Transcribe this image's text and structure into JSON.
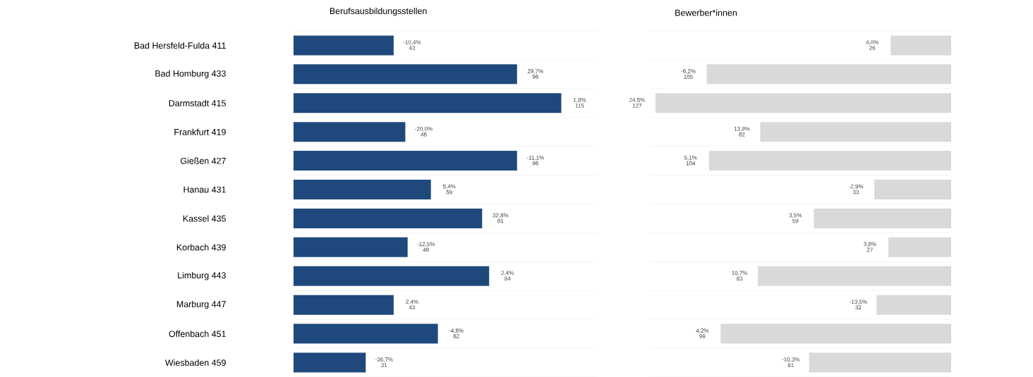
{
  "chart_data": [
    {
      "type": "bar",
      "orientation": "horizontal",
      "title": "Berufsausbildungsstellen",
      "tick_labels": "y",
      "grid": "y",
      "data_labels": true,
      "color": "#1f497d",
      "xlim": [
        0,
        130
      ],
      "categories": [
        "Bad Hersfeld-Fulda 411",
        "Bad Homburg 433",
        "Darmstadt 415",
        "Frankfurt 419",
        "Gießen 427",
        "Hanau 431",
        "Kassel 435",
        "Korbach 439",
        "Limburg 443",
        "Marburg 447",
        "Offenbach 451",
        "Wiesbaden 459"
      ],
      "values": [
        43,
        96,
        115,
        48,
        96,
        59,
        81,
        49,
        84,
        43,
        62,
        31
      ],
      "annotations": [
        {
          "text": "-10,4%",
          "x": 43,
          "y": "Bad Hersfeld-Fulda 411"
        },
        {
          "text": "29,7%",
          "x": 96,
          "y": "Bad Homburg 433"
        },
        {
          "text": "1,8%",
          "x": 115,
          "y": "Darmstadt 415"
        },
        {
          "text": "-20,0%",
          "x": 48,
          "y": "Frankfurt 419"
        },
        {
          "text": "-11,1%",
          "x": 96,
          "y": "Gießen 427"
        },
        {
          "text": "5,4%",
          "x": 59,
          "y": "Hanau 431"
        },
        {
          "text": "32,8%",
          "x": 81,
          "y": "Kassel 435"
        },
        {
          "text": "-12,5%",
          "x": 49,
          "y": "Korbach 439"
        },
        {
          "text": "2,4%",
          "x": 84,
          "y": "Limburg 443"
        },
        {
          "text": "2,4%",
          "x": 43,
          "y": "Marburg 447"
        },
        {
          "text": "-4,6%",
          "x": 62,
          "y": "Offenbach 451"
        },
        {
          "text": "-36,7%",
          "x": 31,
          "y": "Wiesbaden 459"
        }
      ]
    },
    {
      "type": "bar",
      "orientation": "horizontal",
      "title": "Bewerber*innen",
      "tick_labels": false,
      "grid": "y",
      "data_labels": true,
      "color": "#d9d9d9",
      "xlim": [
        130,
        0
      ],
      "categories": [
        null,
        null,
        null,
        null,
        null,
        null,
        null,
        null,
        null,
        null,
        null,
        null
      ],
      "values": [
        26,
        105,
        127,
        82,
        104,
        33,
        59,
        27,
        83,
        32,
        99,
        61
      ],
      "annotations": [
        {
          "text": "4,0%",
          "x": 26
        },
        {
          "text": "-6,2%",
          "x": 105
        },
        {
          "text": "24,5%",
          "x": 127
        },
        {
          "text": "13,9%",
          "x": 82
        },
        {
          "text": "5,1%",
          "x": 104
        },
        {
          "text": "-2,9%",
          "x": 33
        },
        {
          "text": "3,5%",
          "x": 59
        },
        {
          "text": "3,8%",
          "x": 27
        },
        {
          "text": "10,7%",
          "x": 83
        },
        {
          "text": "-13,5%",
          "x": 32
        },
        {
          "text": "4,2%",
          "x": 99
        },
        {
          "text": "-10,3%",
          "x": 61
        }
      ]
    }
  ]
}
